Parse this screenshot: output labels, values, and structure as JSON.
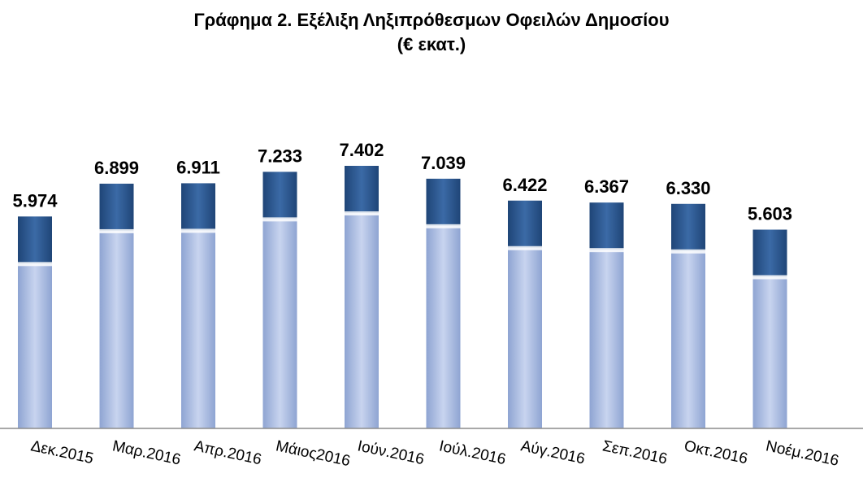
{
  "chart_data": {
    "type": "bar",
    "title": "Γράφημα 2. Εξέλιξη Ληξιπρόθεσμων Οφειλών Δημοσίου",
    "subtitle": "(€ εκατ.)",
    "xlabel": "",
    "ylabel": "",
    "grid": false,
    "legend": "none",
    "categories": [
      "Δεκ.2015",
      "Μαρ.2016",
      "Απρ.2016",
      "Μάιος2016",
      "Ιούν.2016",
      "Ιούλ.2016",
      "Αύγ.2016",
      "Σεπ.2016",
      "Οκτ.2016",
      "Νοέμ.2016"
    ],
    "values": [
      5974,
      6899,
      6911,
      7233,
      7402,
      7039,
      6422,
      6367,
      6330,
      5603
    ],
    "data_labels": [
      "5.974",
      "6.899",
      "6.911",
      "7.233",
      "7.402",
      "7.039",
      "6.422",
      "6.367",
      "6.330",
      "5.603"
    ],
    "ylim": [
      0,
      7402
    ],
    "colors": {
      "bar_top": "#2e5a91",
      "bar_bottom": "#b3c3e6",
      "axis": "#8c8c8c"
    }
  }
}
